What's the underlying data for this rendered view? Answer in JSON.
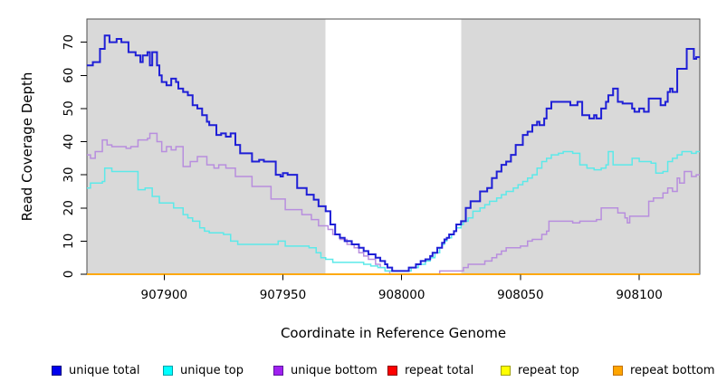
{
  "chart_data": {
    "type": "line",
    "style": "step",
    "title": "",
    "xlabel": "Coordinate in Reference Genome",
    "ylabel": "Read Coverage Depth",
    "xlim": [
      907867.5,
      908125.5
    ],
    "ylim": [
      0,
      77
    ],
    "x_ticks": [
      907900,
      907950,
      908000,
      908050,
      908100
    ],
    "y_ticks": [
      0,
      10,
      20,
      30,
      40,
      50,
      60,
      70
    ],
    "grid": false,
    "legend_position": "bottom",
    "plot_background": "#d9d9d9",
    "outer_background": "#ffffff",
    "border_color": "#4d4d4d",
    "highlight_band": {
      "from": 907968,
      "to": 908025,
      "color": "#ffffff"
    },
    "zero_line_value": 0,
    "draw_order": [
      2,
      3,
      4,
      5,
      1,
      0
    ],
    "series": [
      {
        "name": "unique total",
        "line_color": "#1f1fd6",
        "legend_fill": "#0000ee",
        "legend_border": "#00007a",
        "line_width": 2,
        "points": [
          [
            907867,
            63
          ],
          [
            907870,
            64
          ],
          [
            907873,
            68
          ],
          [
            907875,
            72
          ],
          [
            907877,
            70
          ],
          [
            907880,
            71
          ],
          [
            907882,
            70
          ],
          [
            907885,
            67
          ],
          [
            907888,
            66
          ],
          [
            907890,
            64
          ],
          [
            907891,
            66
          ],
          [
            907893,
            67
          ],
          [
            907894,
            63
          ],
          [
            907895,
            67
          ],
          [
            907897,
            63
          ],
          [
            907898,
            60
          ],
          [
            907899,
            58
          ],
          [
            907901,
            57
          ],
          [
            907903,
            59
          ],
          [
            907905,
            58
          ],
          [
            907906,
            56
          ],
          [
            907908,
            55
          ],
          [
            907910,
            54
          ],
          [
            907912,
            51
          ],
          [
            907914,
            50
          ],
          [
            907916,
            48
          ],
          [
            907918,
            46
          ],
          [
            907919,
            45
          ],
          [
            907922,
            42
          ],
          [
            907924,
            42.5
          ],
          [
            907926,
            41.5
          ],
          [
            907928,
            42.5
          ],
          [
            907930,
            39
          ],
          [
            907932,
            36.5
          ],
          [
            907937,
            34
          ],
          [
            907940,
            34.5
          ],
          [
            907942,
            34
          ],
          [
            907947,
            30
          ],
          [
            907949,
            29.5
          ],
          [
            907950,
            30.5
          ],
          [
            907952,
            30
          ],
          [
            907956,
            26
          ],
          [
            907960,
            24
          ],
          [
            907963,
            22.5
          ],
          [
            907965,
            20.5
          ],
          [
            907968,
            19
          ],
          [
            907970,
            15
          ],
          [
            907972,
            12
          ],
          [
            907974,
            11
          ],
          [
            907976,
            10
          ],
          [
            907979,
            9
          ],
          [
            907982,
            8
          ],
          [
            907984,
            7
          ],
          [
            907986,
            6
          ],
          [
            907989,
            5
          ],
          [
            907991,
            4
          ],
          [
            907993,
            3
          ],
          [
            907994,
            2
          ],
          [
            907996,
            1
          ],
          [
            908003,
            2
          ],
          [
            908006,
            3
          ],
          [
            908008,
            4
          ],
          [
            908010,
            4.5
          ],
          [
            908012,
            5.5
          ],
          [
            908013,
            6.5
          ],
          [
            908015,
            8
          ],
          [
            908017,
            9.5
          ],
          [
            908018,
            10.5
          ],
          [
            908019,
            11
          ],
          [
            908020,
            12
          ],
          [
            908022,
            13
          ],
          [
            908023,
            15
          ],
          [
            908025,
            16
          ],
          [
            908027,
            20
          ],
          [
            908029,
            22
          ],
          [
            908033,
            25
          ],
          [
            908036,
            26
          ],
          [
            908038,
            29
          ],
          [
            908040,
            31
          ],
          [
            908042,
            33
          ],
          [
            908044,
            34
          ],
          [
            908046,
            36
          ],
          [
            908048,
            39
          ],
          [
            908051,
            42
          ],
          [
            908053,
            43
          ],
          [
            908055,
            45
          ],
          [
            908057,
            46
          ],
          [
            908058,
            45
          ],
          [
            908060,
            47
          ],
          [
            908061,
            50
          ],
          [
            908063,
            52
          ],
          [
            908071,
            51
          ],
          [
            908074,
            52
          ],
          [
            908076,
            48
          ],
          [
            908079,
            47
          ],
          [
            908081,
            48
          ],
          [
            908082,
            47
          ],
          [
            908084,
            50
          ],
          [
            908086,
            52
          ],
          [
            908087,
            54
          ],
          [
            908089,
            56
          ],
          [
            908091,
            52
          ],
          [
            908093,
            51.5
          ],
          [
            908097,
            50
          ],
          [
            908098,
            49
          ],
          [
            908100,
            50
          ],
          [
            908102,
            49
          ],
          [
            908104,
            53
          ],
          [
            908109,
            51
          ],
          [
            908111,
            52
          ],
          [
            908112,
            55
          ],
          [
            908113,
            56
          ],
          [
            908114,
            55
          ],
          [
            908116,
            62
          ],
          [
            908120,
            68
          ],
          [
            908123,
            65
          ],
          [
            908124,
            65.5
          ]
        ]
      },
      {
        "name": "unique top",
        "line_color": "#5ce9e9",
        "legend_fill": "#00ffff",
        "legend_border": "#00a0a8",
        "line_width": 1.5,
        "points": [
          [
            907867,
            26
          ],
          [
            907869,
            27.5
          ],
          [
            907874,
            28
          ],
          [
            907875,
            32
          ],
          [
            907878,
            31
          ],
          [
            907889,
            25.5
          ],
          [
            907892,
            26
          ],
          [
            907895,
            23.5
          ],
          [
            907898,
            21.5
          ],
          [
            907904,
            20
          ],
          [
            907908,
            18
          ],
          [
            907910,
            17
          ],
          [
            907912,
            16
          ],
          [
            907915,
            14
          ],
          [
            907917,
            13
          ],
          [
            907919,
            12.5
          ],
          [
            907925,
            12
          ],
          [
            907928,
            10
          ],
          [
            907931,
            9
          ],
          [
            907948,
            10
          ],
          [
            907951,
            8.5
          ],
          [
            907961,
            8
          ],
          [
            907964,
            6.5
          ],
          [
            907966,
            5
          ],
          [
            907968,
            4.5
          ],
          [
            907971,
            3.6
          ],
          [
            907984,
            3
          ],
          [
            907987,
            2.5
          ],
          [
            907990,
            2
          ],
          [
            907993,
            1
          ],
          [
            908004,
            2
          ],
          [
            908007,
            3
          ],
          [
            908010,
            4
          ],
          [
            908012,
            5
          ],
          [
            908014,
            6.5
          ],
          [
            908016,
            8
          ],
          [
            908017,
            9
          ],
          [
            908018,
            10
          ],
          [
            908019,
            11
          ],
          [
            908021,
            12
          ],
          [
            908022,
            13
          ],
          [
            908023,
            14
          ],
          [
            908025,
            15
          ],
          [
            908026,
            16
          ],
          [
            908028,
            17
          ],
          [
            908030,
            19
          ],
          [
            908033,
            20
          ],
          [
            908035,
            21
          ],
          [
            908037,
            22
          ],
          [
            908040,
            23
          ],
          [
            908042,
            24
          ],
          [
            908044,
            25
          ],
          [
            908047,
            26
          ],
          [
            908049,
            27
          ],
          [
            908051,
            28
          ],
          [
            908053,
            29
          ],
          [
            908055,
            30
          ],
          [
            908057,
            32
          ],
          [
            908059,
            34
          ],
          [
            908061,
            35
          ],
          [
            908063,
            36
          ],
          [
            908066,
            36.5
          ],
          [
            908068,
            37
          ],
          [
            908072,
            36.5
          ],
          [
            908075,
            33
          ],
          [
            908078,
            32
          ],
          [
            908081,
            31.5
          ],
          [
            908084,
            32
          ],
          [
            908086,
            33
          ],
          [
            908087,
            37
          ],
          [
            908089,
            33
          ],
          [
            908097,
            35
          ],
          [
            908100,
            34
          ],
          [
            908105,
            33.5
          ],
          [
            908107,
            30.5
          ],
          [
            908110,
            31
          ],
          [
            908112,
            34
          ],
          [
            908114,
            35
          ],
          [
            908116,
            36
          ],
          [
            908118,
            37
          ],
          [
            908122,
            36.5
          ],
          [
            908124,
            37
          ]
        ]
      },
      {
        "name": "unique bottom",
        "line_color": "#b88ede",
        "legend_fill": "#a020f0",
        "legend_border": "#5c169c",
        "line_width": 1.5,
        "points": [
          [
            907867,
            36
          ],
          [
            907869,
            35
          ],
          [
            907871,
            37
          ],
          [
            907874,
            40.5
          ],
          [
            907876,
            39
          ],
          [
            907878,
            38.5
          ],
          [
            907884,
            38
          ],
          [
            907886,
            38.5
          ],
          [
            907889,
            40.5
          ],
          [
            907893,
            41
          ],
          [
            907894,
            42.5
          ],
          [
            907897,
            40
          ],
          [
            907899,
            37
          ],
          [
            907901,
            38.5
          ],
          [
            907903,
            37.5
          ],
          [
            907905,
            38.5
          ],
          [
            907908,
            32.5
          ],
          [
            907911,
            34
          ],
          [
            907914,
            35.5
          ],
          [
            907918,
            33
          ],
          [
            907921,
            32
          ],
          [
            907923,
            33
          ],
          [
            907926,
            32
          ],
          [
            907930,
            29.5
          ],
          [
            907937,
            26.5
          ],
          [
            907945,
            22.7
          ],
          [
            907951,
            19.5
          ],
          [
            907958,
            18
          ],
          [
            907962,
            16.5
          ],
          [
            907965,
            14.6
          ],
          [
            907969,
            13.5
          ],
          [
            907971,
            12
          ],
          [
            907974,
            10.5
          ],
          [
            907977,
            9
          ],
          [
            907980,
            8
          ],
          [
            907982,
            6.5
          ],
          [
            907984,
            5.5
          ],
          [
            907986,
            4.5
          ],
          [
            907989,
            3
          ],
          [
            907991,
            2
          ],
          [
            907993,
            1
          ],
          [
            907995,
            0
          ],
          [
            908016,
            1
          ],
          [
            908026,
            2
          ],
          [
            908028,
            3
          ],
          [
            908035,
            4
          ],
          [
            908038,
            5
          ],
          [
            908040,
            6
          ],
          [
            908042,
            7
          ],
          [
            908044,
            8
          ],
          [
            908050,
            8.5
          ],
          [
            908053,
            10
          ],
          [
            908055,
            10.5
          ],
          [
            908059,
            12
          ],
          [
            908061,
            13
          ],
          [
            908062,
            16
          ],
          [
            908072,
            15.5
          ],
          [
            908075,
            16
          ],
          [
            908082,
            16.5
          ],
          [
            908084,
            20
          ],
          [
            908089,
            20
          ],
          [
            908091,
            18.5
          ],
          [
            908094,
            17
          ],
          [
            908095,
            15.5
          ],
          [
            908096,
            17.5
          ],
          [
            908104,
            22
          ],
          [
            908106,
            23
          ],
          [
            908110,
            24.5
          ],
          [
            908112,
            26
          ],
          [
            908114,
            25
          ],
          [
            908116,
            29
          ],
          [
            908117,
            27.5
          ],
          [
            908119,
            31
          ],
          [
            908122,
            29.5
          ],
          [
            908124,
            30
          ]
        ]
      },
      {
        "name": "repeat total",
        "line_color": "#d00000",
        "legend_fill": "#ff0000",
        "legend_border": "#8b0000",
        "line_width": 1.2,
        "points": [
          [
            907867,
            0
          ],
          [
            908124,
            0
          ]
        ]
      },
      {
        "name": "repeat top",
        "line_color": "#f5f500",
        "legend_fill": "#ffff00",
        "legend_border": "#a0a000",
        "line_width": 1.2,
        "points": [
          [
            907867,
            0
          ],
          [
            908124,
            0
          ]
        ]
      },
      {
        "name": "repeat bottom",
        "line_color": "#ffa500",
        "legend_fill": "#ffa500",
        "legend_border": "#c07000",
        "line_width": 1.8,
        "points": [
          [
            907867,
            0
          ],
          [
            908124,
            0
          ]
        ]
      }
    ]
  }
}
